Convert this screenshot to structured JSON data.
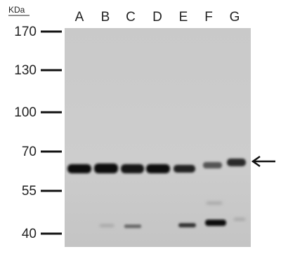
{
  "figure": {
    "unit": "KDa",
    "lanes": [
      "A",
      "B",
      "C",
      "D",
      "E",
      "F",
      "G"
    ],
    "markers": [
      "170",
      "130",
      "100",
      "70",
      "55",
      "40"
    ]
  }
}
